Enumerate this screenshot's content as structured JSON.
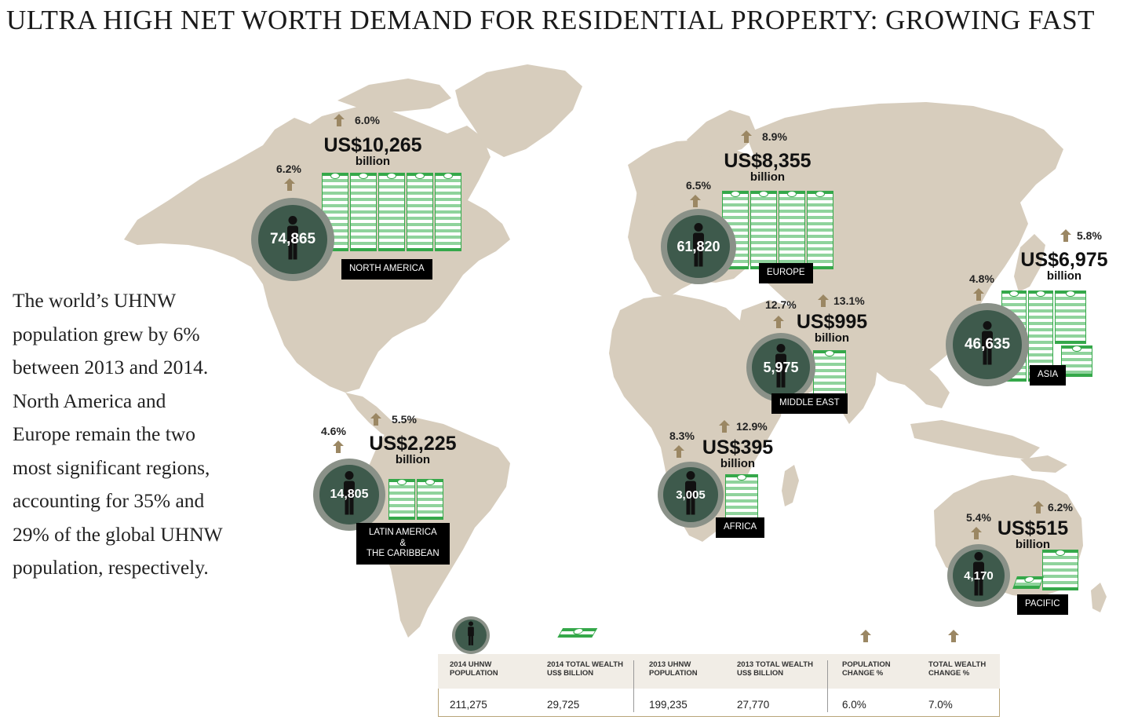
{
  "title": "ULTRA HIGH NET WORTH DEMAND FOR RESIDENTIAL PROPERTY: GROWING FAST",
  "intro_lines": [
    "The world’s UHNW",
    "population grew by 6%",
    "between 2013 and 2014.",
    "North America and",
    "Europe remain the two",
    "most significant regions,",
    "accounting for 35% and",
    "29% of the global UHNW",
    "population, respectively."
  ],
  "regions": {
    "north_america": {
      "name": "NORTH AMERICA",
      "population": "74,865",
      "pop_change": "6.2%",
      "wealth": "US$10,265",
      "wealth_unit": "billion",
      "wealth_change": "6.0%"
    },
    "europe": {
      "name": "EUROPE",
      "population": "61,820",
      "pop_change": "6.5%",
      "wealth": "US$8,355",
      "wealth_unit": "billion",
      "wealth_change": "8.9%"
    },
    "asia": {
      "name": "ASIA",
      "population": "46,635",
      "pop_change": "4.8%",
      "wealth": "US$6,975",
      "wealth_unit": "billion",
      "wealth_change": "5.8%"
    },
    "middle_east": {
      "name": "MIDDLE EAST",
      "population": "5,975",
      "pop_change": "12.7%",
      "wealth": "US$995",
      "wealth_unit": "billion",
      "wealth_change": "13.1%"
    },
    "latin_america": {
      "name_lines": [
        "LATIN AMERICA",
        "&",
        "THE CARIBBEAN"
      ],
      "population": "14,805",
      "pop_change": "4.6%",
      "wealth": "US$2,225",
      "wealth_unit": "billion",
      "wealth_change": "5.5%"
    },
    "africa": {
      "name": "AFRICA",
      "population": "3,005",
      "pop_change": "8.3%",
      "wealth": "US$395",
      "wealth_unit": "billion",
      "wealth_change": "12.9%"
    },
    "pacific": {
      "name": "PACIFIC",
      "population": "4,170",
      "pop_change": "5.4%",
      "wealth": "US$515",
      "wealth_unit": "billion",
      "wealth_change": "6.2%"
    }
  },
  "legend": {
    "headers": [
      [
        "2014 UHNW",
        "POPULATION"
      ],
      [
        "2014 TOTAL WEALTH",
        "US$ BILLION"
      ],
      [
        "2013 UHNW",
        "POPULATION"
      ],
      [
        "2013 TOTAL WEALTH",
        "US$ BILLION"
      ],
      [
        "POPULATION",
        "CHANGE %"
      ],
      [
        "TOTAL WEALTH",
        "CHANGE %"
      ]
    ],
    "values": [
      "211,275",
      "29,725",
      "199,235",
      "27,770",
      "6.0%",
      "7.0%"
    ]
  },
  "colors": {
    "land": "#d7cdbd",
    "circle_outer": "#8a9188",
    "circle_inner": "#3e5a4c",
    "arrow": "#9b8763",
    "money": "#35a84a",
    "label_bg": "#000000"
  }
}
